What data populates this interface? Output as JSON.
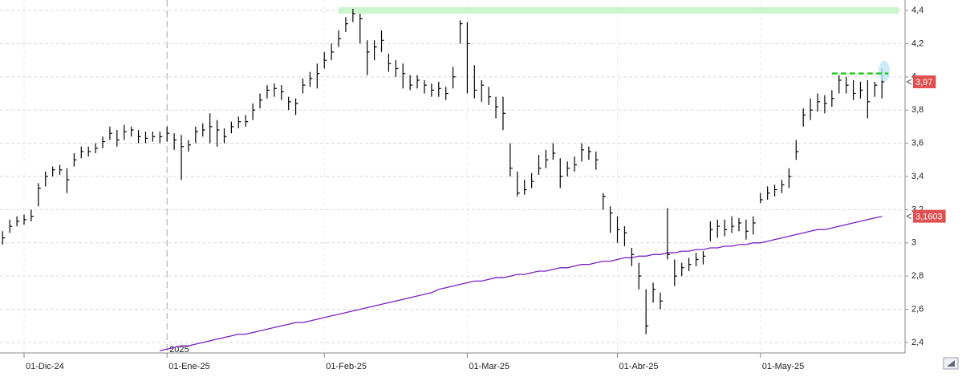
{
  "chart_data": {
    "type": "ohlc",
    "categories": [
      null,
      null,
      null,
      "01-Dic-24",
      null,
      null,
      null,
      null,
      null,
      null,
      null,
      null,
      null,
      null,
      null,
      null,
      null,
      null,
      null,
      null,
      null,
      null,
      null,
      "01-Ene-25",
      null,
      null,
      null,
      null,
      null,
      null,
      null,
      null,
      null,
      null,
      null,
      null,
      null,
      null,
      null,
      null,
      null,
      null,
      null,
      null,
      null,
      "01-Feb-25",
      null,
      null,
      null,
      null,
      null,
      null,
      null,
      null,
      null,
      null,
      null,
      null,
      null,
      null,
      null,
      null,
      null,
      null,
      null,
      "01-Mar-25",
      null,
      null,
      null,
      null,
      null,
      null,
      null,
      null,
      null,
      null,
      null,
      null,
      null,
      null,
      null,
      null,
      null,
      null,
      null,
      null,
      "01-Abr-25",
      null,
      null,
      null,
      null,
      null,
      null,
      null,
      null,
      null,
      null,
      null,
      null,
      null,
      null,
      null,
      null,
      null,
      null,
      null,
      "01-May-25",
      null,
      null,
      null,
      null,
      null,
      null,
      null,
      null,
      null,
      null,
      null,
      null,
      null,
      null,
      null,
      null,
      null
    ],
    "high": [
      3.07,
      3.14,
      3.16,
      3.17,
      3.2,
      3.36,
      3.43,
      3.46,
      3.47,
      3.45,
      3.54,
      3.58,
      3.58,
      3.6,
      3.64,
      3.7,
      3.68,
      3.71,
      3.7,
      3.68,
      3.67,
      3.67,
      3.67,
      3.7,
      3.66,
      3.65,
      3.62,
      3.7,
      3.72,
      3.78,
      3.74,
      3.69,
      3.73,
      3.76,
      3.77,
      3.84,
      3.9,
      3.95,
      3.96,
      3.95,
      3.88,
      3.87,
      3.99,
      4.03,
      4.08,
      4.15,
      4.2,
      4.28,
      4.36,
      4.41,
      4.38,
      4.22,
      4.22,
      4.28,
      4.14,
      4.1,
      4.08,
      4.01,
      4.01,
      3.98,
      3.96,
      3.97,
      3.94,
      4.06,
      4.34,
      4.33,
      4.07,
      3.98,
      3.94,
      3.88,
      3.88,
      3.6,
      3.43,
      3.38,
      3.42,
      3.53,
      3.56,
      3.6,
      3.51,
      3.49,
      3.52,
      3.6,
      3.58,
      3.55,
      3.3,
      3.22,
      3.16,
      3.1,
      2.97,
      2.88,
      2.72,
      2.76,
      2.7,
      3.21,
      2.9,
      2.88,
      2.91,
      2.94,
      2.95,
      3.13,
      3.14,
      3.14,
      3.16,
      3.15,
      3.14,
      3.16,
      3.3,
      3.34,
      3.35,
      3.38,
      3.45,
      3.62,
      3.81,
      3.87,
      3.9,
      3.89,
      3.92,
      4.01,
      4.0,
      3.98,
      3.97,
      3.98,
      3.97,
      4.05
    ],
    "low": [
      2.99,
      3.06,
      3.1,
      3.11,
      3.13,
      3.22,
      3.34,
      3.4,
      3.41,
      3.3,
      3.46,
      3.51,
      3.52,
      3.54,
      3.57,
      3.62,
      3.58,
      3.62,
      3.64,
      3.6,
      3.6,
      3.61,
      3.6,
      3.61,
      3.56,
      3.38,
      3.55,
      3.6,
      3.64,
      3.6,
      3.58,
      3.6,
      3.66,
      3.69,
      3.7,
      3.74,
      3.81,
      3.87,
      3.88,
      3.86,
      3.8,
      3.77,
      3.9,
      3.94,
      3.93,
      4.05,
      4.1,
      4.18,
      4.27,
      4.33,
      4.2,
      4.01,
      4.1,
      4.15,
      4.03,
      4.0,
      3.93,
      3.92,
      3.93,
      3.9,
      3.88,
      3.88,
      3.86,
      3.93,
      4.2,
      3.9,
      3.87,
      3.85,
      3.83,
      3.75,
      3.68,
      3.4,
      3.28,
      3.29,
      3.33,
      3.41,
      3.45,
      3.5,
      3.33,
      3.4,
      3.43,
      3.49,
      3.5,
      3.44,
      3.2,
      3.06,
      3.0,
      2.98,
      2.86,
      2.72,
      2.45,
      2.64,
      2.6,
      2.9,
      2.74,
      2.8,
      2.83,
      2.86,
      2.87,
      3.01,
      3.03,
      3.04,
      3.06,
      3.07,
      3.02,
      3.05,
      3.24,
      3.26,
      3.28,
      3.3,
      3.33,
      3.5,
      3.7,
      3.74,
      3.79,
      3.78,
      3.82,
      3.9,
      3.9,
      3.86,
      3.87,
      3.75,
      3.88,
      3.87
    ],
    "close": [
      3.03,
      3.1,
      3.13,
      3.14,
      3.16,
      3.33,
      3.4,
      3.44,
      3.44,
      3.38,
      3.5,
      3.55,
      3.55,
      3.57,
      3.61,
      3.66,
      3.62,
      3.67,
      3.68,
      3.64,
      3.63,
      3.64,
      3.64,
      3.66,
      3.62,
      3.58,
      3.59,
      3.67,
      3.68,
      3.7,
      3.68,
      3.64,
      3.7,
      3.73,
      3.73,
      3.8,
      3.86,
      3.92,
      3.93,
      3.91,
      3.85,
      3.84,
      3.95,
      3.99,
      4.02,
      4.1,
      4.15,
      4.23,
      4.32,
      4.38,
      4.35,
      4.15,
      4.18,
      4.22,
      4.08,
      4.05,
      4.02,
      3.95,
      3.98,
      3.95,
      3.92,
      3.93,
      3.9,
      4.0,
      4.32,
      4.2,
      3.92,
      3.95,
      3.88,
      3.82,
      3.78,
      3.45,
      3.3,
      3.32,
      3.37,
      3.45,
      3.5,
      3.54,
      3.4,
      3.45,
      3.47,
      3.56,
      3.55,
      3.5,
      3.28,
      3.18,
      3.08,
      3.06,
      2.93,
      2.8,
      2.5,
      2.72,
      2.65,
      2.93,
      2.8,
      2.85,
      2.87,
      2.9,
      2.92,
      3.08,
      3.1,
      3.08,
      3.1,
      3.12,
      3.07,
      3.12,
      3.26,
      3.3,
      3.32,
      3.35,
      3.4,
      3.55,
      3.77,
      3.8,
      3.85,
      3.84,
      3.87,
      3.98,
      3.95,
      3.9,
      3.92,
      3.85,
      3.95,
      3.97
    ],
    "bar_color": "#000000",
    "moving_average": {
      "color": "#7b1fc4",
      "values": [
        null,
        null,
        null,
        null,
        null,
        null,
        null,
        null,
        null,
        null,
        null,
        null,
        null,
        null,
        null,
        null,
        null,
        null,
        null,
        null,
        null,
        null,
        2.35,
        2.36,
        2.37,
        2.38,
        2.38,
        2.39,
        2.4,
        2.41,
        2.42,
        2.43,
        2.44,
        2.45,
        2.45,
        2.46,
        2.47,
        2.48,
        2.49,
        2.5,
        2.51,
        2.52,
        2.52,
        2.53,
        2.54,
        2.55,
        2.56,
        2.57,
        2.58,
        2.59,
        2.6,
        2.61,
        2.62,
        2.63,
        2.64,
        2.65,
        2.66,
        2.67,
        2.68,
        2.69,
        2.7,
        2.72,
        2.73,
        2.74,
        2.75,
        2.76,
        2.77,
        2.77,
        2.78,
        2.79,
        2.79,
        2.8,
        2.81,
        2.81,
        2.82,
        2.83,
        2.83,
        2.84,
        2.85,
        2.85,
        2.86,
        2.87,
        2.87,
        2.88,
        2.89,
        2.89,
        2.9,
        2.91,
        2.91,
        2.92,
        2.92,
        2.93,
        2.93,
        2.94,
        2.94,
        2.95,
        2.95,
        2.96,
        2.96,
        2.97,
        2.97,
        2.98,
        2.98,
        2.99,
        2.99,
        3.0,
        3.0,
        3.01,
        3.02,
        3.03,
        3.04,
        3.05,
        3.06,
        3.07,
        3.08,
        3.08,
        3.09,
        3.1,
        3.11,
        3.12,
        3.13,
        3.14,
        3.15,
        3.16
      ]
    },
    "resistance_band": {
      "range": [
        4.38,
        4.42
      ],
      "color": "#ccf5cc"
    },
    "target_line": {
      "value": 4.02,
      "color": "#22cc22"
    },
    "price_labels": [
      {
        "value": 3.97,
        "label": "3,97"
      },
      {
        "value": 3.1603,
        "label": "3,1603"
      }
    ],
    "year_marker": "2025",
    "ylim": [
      2.337,
      4.463
    ],
    "yticks": [
      {
        "value": 2.4,
        "label": "2,4"
      },
      {
        "value": 2.6,
        "label": "2,6"
      },
      {
        "value": 2.8,
        "label": "2,8"
      },
      3,
      {
        "value": 3.2,
        "label": "3,2"
      },
      {
        "value": 3.4,
        "label": "3,4"
      },
      {
        "value": 3.6,
        "label": "3,6"
      },
      {
        "value": 3.8,
        "label": "3,8"
      },
      {
        "value": 4,
        "label": "4"
      },
      {
        "value": 4.2,
        "label": "4,2"
      },
      {
        "value": 4.4,
        "label": "4,4"
      }
    ],
    "grid": true
  }
}
